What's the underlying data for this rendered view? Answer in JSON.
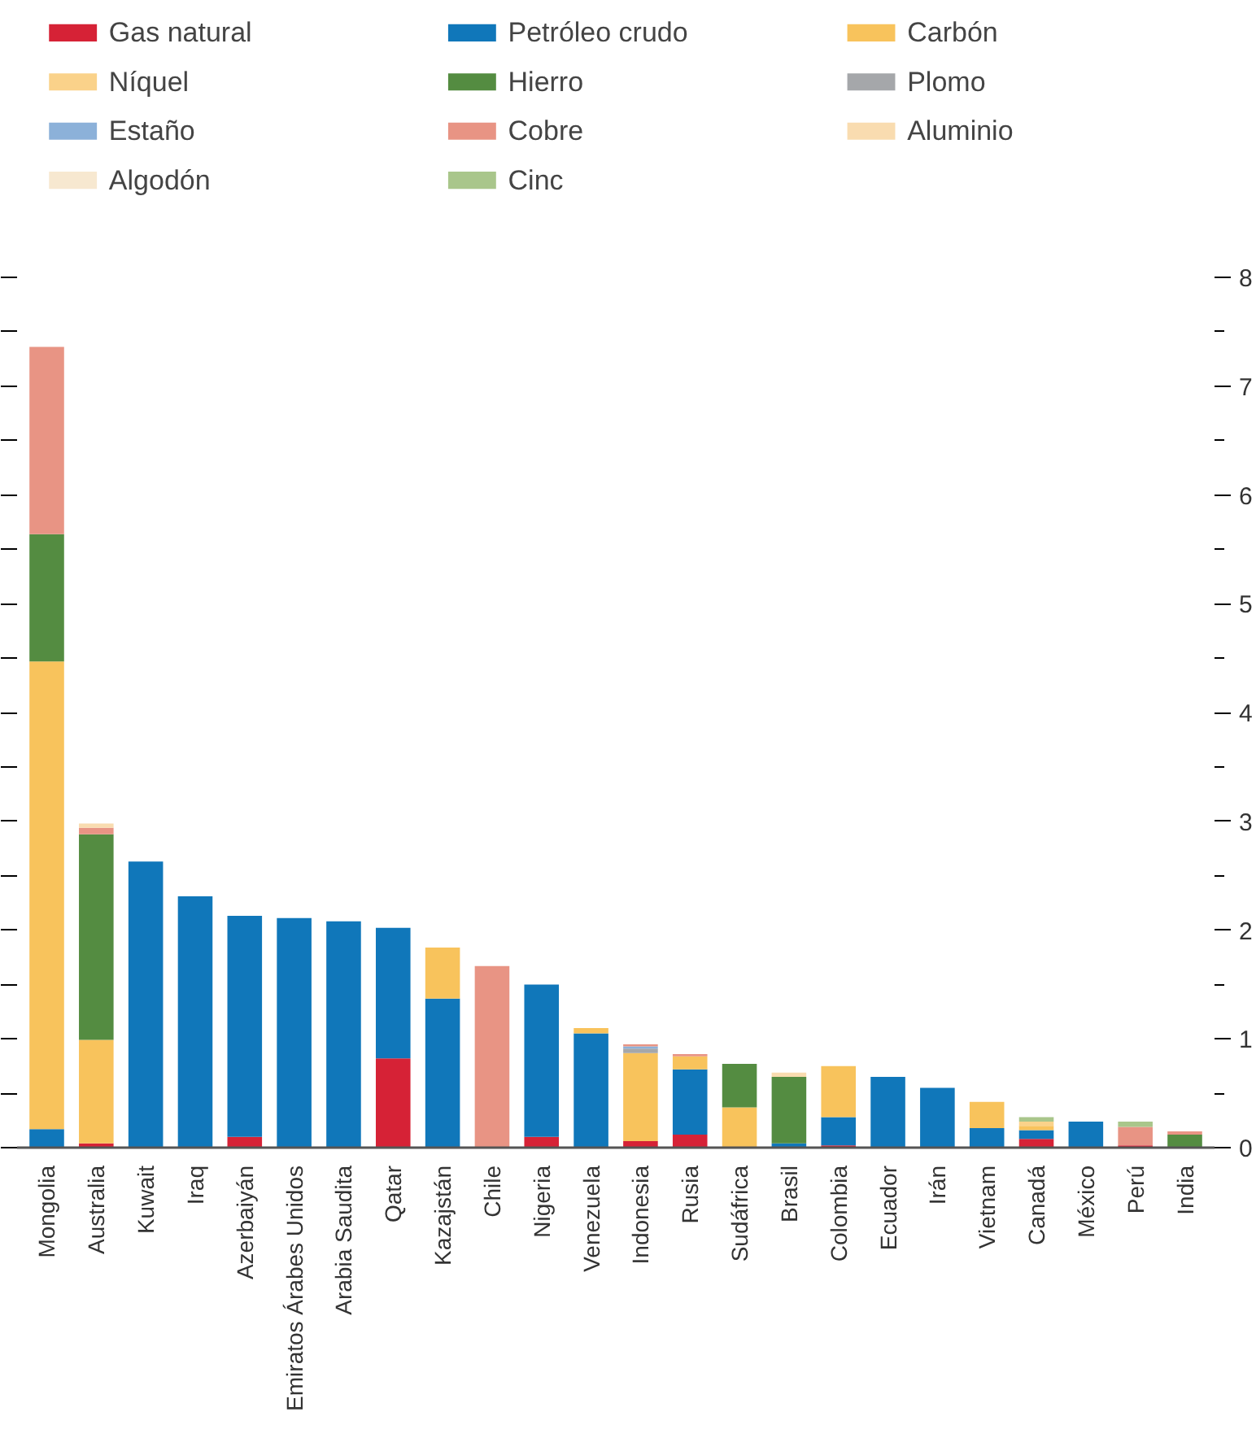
{
  "chart_data": {
    "type": "bar",
    "stacked": true,
    "legend": "top",
    "grid": false,
    "categories": [
      "Mongolia",
      "Australia",
      "Kuwait",
      "Iraq",
      "Azerbaiyán",
      "Emiratos Árabes Unidos",
      "Arabia Saudita",
      "Qatar",
      "Kazajstán",
      "Chile",
      "Nigeria",
      "Venezuela",
      "Indonesia",
      "Rusia",
      "Sudáfrica",
      "Brasil",
      "Colombia",
      "Ecuador",
      "Irán",
      "Vietnam",
      "Canadá",
      "México",
      "Perú",
      "India"
    ],
    "ylim": [
      0,
      8
    ],
    "yticks": [
      0,
      {
        "value": 0.5,
        "label": null
      },
      1,
      {
        "value": 1.5,
        "label": null
      },
      2,
      {
        "value": 2.5,
        "label": null
      },
      3,
      {
        "value": 3.5,
        "label": null
      },
      4,
      {
        "value": 4.5,
        "label": null
      },
      5,
      {
        "value": 5.5,
        "label": null
      },
      6,
      {
        "value": 6.5,
        "label": null
      },
      7,
      {
        "value": 7.5,
        "label": null
      },
      8
    ],
    "series": [
      {
        "name": "Gas natural",
        "color": "#d62236",
        "values": [
          null,
          0.04,
          null,
          null,
          0.1,
          null,
          null,
          0.82,
          null,
          null,
          0.1,
          null,
          0.06,
          0.12,
          null,
          null,
          0.02,
          null,
          null,
          null,
          0.08,
          null,
          0.02,
          null
        ]
      },
      {
        "name": "Petróleo crudo",
        "color": "#1077ba",
        "values": [
          0.17,
          null,
          2.63,
          2.31,
          2.03,
          2.11,
          2.08,
          1.2,
          1.37,
          null,
          1.4,
          1.05,
          null,
          0.6,
          null,
          0.04,
          0.26,
          0.65,
          0.55,
          0.18,
          0.08,
          0.24,
          null,
          null
        ]
      },
      {
        "name": "Carbón",
        "color": "#f8c35c",
        "values": [
          4.3,
          0.95,
          null,
          null,
          null,
          null,
          null,
          null,
          0.47,
          null,
          null,
          0.05,
          0.81,
          0.12,
          0.37,
          null,
          0.47,
          null,
          null,
          0.24,
          0.04,
          null,
          null,
          null
        ]
      },
      {
        "name": "Níquel",
        "color": "#fad28a",
        "values": [
          null,
          null,
          null,
          null,
          null,
          null,
          null,
          null,
          null,
          null,
          null,
          null,
          null,
          null,
          null,
          null,
          null,
          null,
          null,
          null,
          0.04,
          null,
          null,
          null
        ]
      },
      {
        "name": "Hierro",
        "color": "#548c41",
        "values": [
          1.17,
          1.89,
          null,
          null,
          null,
          null,
          null,
          null,
          null,
          null,
          null,
          null,
          null,
          null,
          0.4,
          0.61,
          null,
          null,
          null,
          null,
          null,
          null,
          null,
          0.12
        ]
      },
      {
        "name": "Plomo",
        "color": "#a5a7aa",
        "values": [
          null,
          null,
          null,
          null,
          null,
          null,
          null,
          null,
          null,
          null,
          null,
          null,
          0.04,
          null,
          null,
          null,
          null,
          null,
          null,
          null,
          null,
          null,
          null,
          null
        ]
      },
      {
        "name": "Estaño",
        "color": "#8cb1d9",
        "values": [
          null,
          null,
          null,
          null,
          null,
          null,
          null,
          null,
          null,
          null,
          null,
          null,
          0.02,
          null,
          null,
          null,
          null,
          null,
          null,
          null,
          null,
          null,
          null,
          null
        ]
      },
      {
        "name": "Cobre",
        "color": "#e89484",
        "values": [
          1.72,
          0.06,
          null,
          null,
          null,
          null,
          null,
          null,
          null,
          1.67,
          null,
          null,
          0.02,
          0.02,
          null,
          null,
          null,
          null,
          null,
          null,
          null,
          null,
          0.17,
          0.03
        ]
      },
      {
        "name": "Aluminio",
        "color": "#f9dcb0",
        "values": [
          null,
          0.04,
          null,
          null,
          null,
          null,
          null,
          null,
          null,
          null,
          null,
          null,
          null,
          null,
          null,
          0.04,
          null,
          null,
          null,
          null,
          null,
          null,
          null,
          null
        ]
      },
      {
        "name": "Algodón",
        "color": "#f7e8d0",
        "values": [
          null,
          null,
          null,
          null,
          null,
          null,
          null,
          null,
          null,
          null,
          null,
          null,
          null,
          null,
          null,
          null,
          null,
          null,
          null,
          null,
          null,
          null,
          null,
          null
        ]
      },
      {
        "name": "Cinc",
        "color": "#a9c68b",
        "values": [
          null,
          null,
          null,
          null,
          null,
          null,
          null,
          null,
          null,
          null,
          null,
          null,
          null,
          null,
          null,
          null,
          null,
          null,
          null,
          null,
          0.04,
          null,
          0.05,
          null
        ]
      }
    ]
  }
}
